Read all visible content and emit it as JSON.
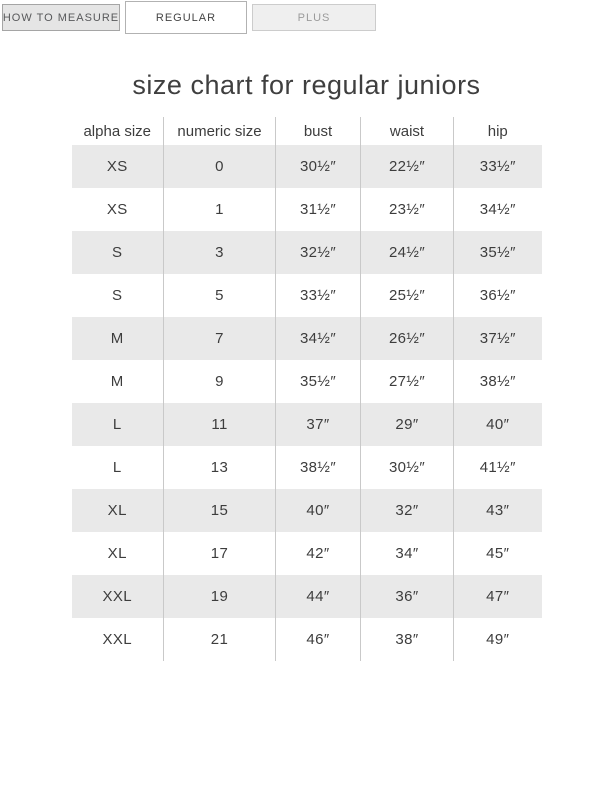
{
  "tabs": [
    {
      "label": "HOW TO MEASURE",
      "active": false
    },
    {
      "label": "REGULAR",
      "active": true
    },
    {
      "label": "PLUS",
      "active": false
    }
  ],
  "title": "size chart for regular juniors",
  "table": {
    "columns": [
      "alpha size",
      "numeric size",
      "bust",
      "waist",
      "hip"
    ],
    "rows": [
      [
        "XS",
        "0",
        "30½″",
        "22½″",
        "33½″"
      ],
      [
        "XS",
        "1",
        "31½″",
        "23½″",
        "34½″"
      ],
      [
        "S",
        "3",
        "32½″",
        "24½″",
        "35½″"
      ],
      [
        "S",
        "5",
        "33½″",
        "25½″",
        "36½″"
      ],
      [
        "M",
        "7",
        "34½″",
        "26½″",
        "37½″"
      ],
      [
        "M",
        "9",
        "35½″",
        "27½″",
        "38½″"
      ],
      [
        "L",
        "11",
        "37″",
        "29″",
        "40″"
      ],
      [
        "L",
        "13",
        "38½″",
        "30½″",
        "41½″"
      ],
      [
        "XL",
        "15",
        "40″",
        "32″",
        "43″"
      ],
      [
        "XL",
        "17",
        "42″",
        "34″",
        "45″"
      ],
      [
        "XXL",
        "19",
        "44″",
        "36″",
        "47″"
      ],
      [
        "XXL",
        "21",
        "46″",
        "38″",
        "49″"
      ]
    ]
  },
  "colors": {
    "row_stripe": "#e9e9e9",
    "column_divider": "#c9c9c9",
    "active_tab_bg": "#ffffff",
    "inactive_tab_dark_bg": "#e5e5e5",
    "inactive_tab_light_bg": "#efefef",
    "text": "#3d3d3d",
    "muted_tab_text": "#9b9b9b"
  }
}
